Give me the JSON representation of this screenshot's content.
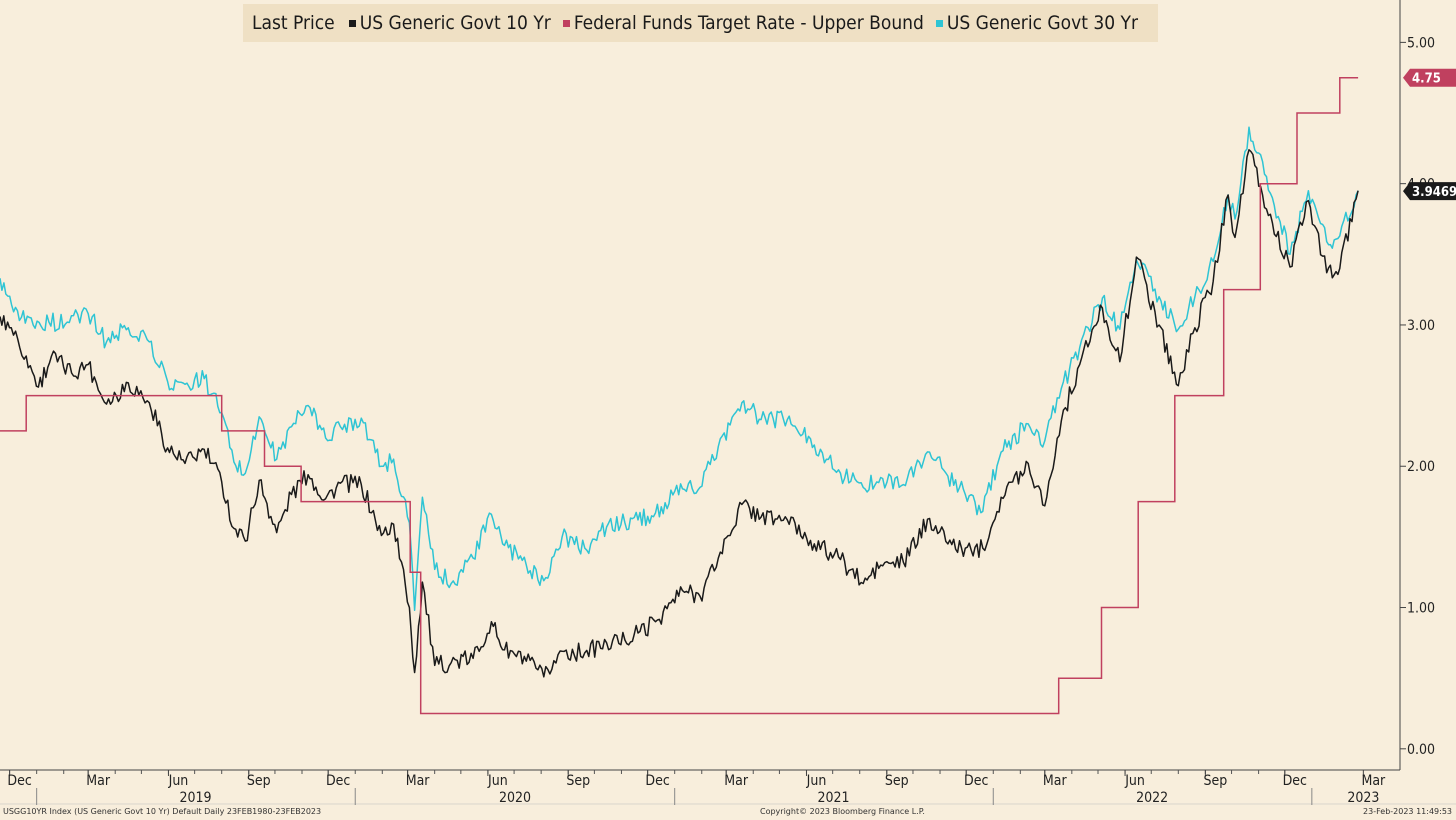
{
  "colors": {
    "background": "#f8eedc",
    "legend_bg": "#efe0c4",
    "ten_year": "#1a1a1a",
    "fed_funds": "#c0405f",
    "thirty_year": "#2ec4d4"
  },
  "legend": {
    "title": "Last Price",
    "items": [
      {
        "label": "US Generic Govt 10 Yr",
        "color": "#1a1a1a"
      },
      {
        "label": "Federal Funds Target Rate - Upper Bound",
        "color": "#c0405f"
      },
      {
        "label": "US Generic Govt 30 Yr",
        "color": "#2ec4d4"
      }
    ]
  },
  "footer": {
    "left": "USGG10YR Index (US Generic Govt 10 Yr) Default  Daily 23FEB1980-23FEB2023",
    "center": "Copyright© 2023 Bloomberg Finance L.P.",
    "right": "23-Feb-2023 11:49:53"
  },
  "chart_data": {
    "type": "line",
    "title": "",
    "xlabel": "",
    "ylabel": "",
    "x_range": [
      "2018-11-20",
      "2023-04-12"
    ],
    "ylim": [
      -0.15,
      5.3
    ],
    "y_ticks": [
      {
        "value": 0,
        "label": "0.00"
      },
      {
        "value": 1,
        "label": "1.00"
      },
      {
        "value": 2,
        "label": "2.00"
      },
      {
        "value": 3,
        "label": "3.00"
      },
      {
        "value": 4,
        "label": "4.00"
      },
      {
        "value": 5,
        "label": "5.00"
      }
    ],
    "x_ticks": [
      {
        "date": "2018-12-01",
        "label": "Dec"
      },
      {
        "date": "2019-03-01",
        "label": "Mar"
      },
      {
        "date": "2019-06-01",
        "label": "Jun"
      },
      {
        "date": "2019-09-01",
        "label": "Sep"
      },
      {
        "date": "2019-12-01",
        "label": "Dec"
      },
      {
        "date": "2020-03-01",
        "label": "Mar"
      },
      {
        "date": "2020-06-01",
        "label": "Jun"
      },
      {
        "date": "2020-09-01",
        "label": "Sep"
      },
      {
        "date": "2020-12-01",
        "label": "Dec"
      },
      {
        "date": "2021-03-01",
        "label": "Mar"
      },
      {
        "date": "2021-06-01",
        "label": "Jun"
      },
      {
        "date": "2021-09-01",
        "label": "Sep"
      },
      {
        "date": "2021-12-01",
        "label": "Dec"
      },
      {
        "date": "2022-03-01",
        "label": "Mar"
      },
      {
        "date": "2022-06-01",
        "label": "Jun"
      },
      {
        "date": "2022-09-01",
        "label": "Sep"
      },
      {
        "date": "2022-12-01",
        "label": "Dec"
      },
      {
        "date": "2023-03-01",
        "label": "Mar"
      }
    ],
    "year_labels": [
      {
        "date": "2019-07-02",
        "label": "2019"
      },
      {
        "date": "2020-07-02",
        "label": "2020"
      },
      {
        "date": "2021-07-02",
        "label": "2021"
      },
      {
        "date": "2022-07-02",
        "label": "2022"
      },
      {
        "date": "2023-03-01",
        "label": "2023"
      }
    ],
    "year_separators": [
      "2019-01-01",
      "2020-01-01",
      "2021-01-01",
      "2022-01-01",
      "2023-01-01"
    ],
    "grid": false,
    "legend_position": "top",
    "series": [
      {
        "name": "US Generic Govt 10 Yr",
        "color": "#1a1a1a",
        "last_value": "3.9469",
        "points": [
          [
            "2018-11-20",
            3.06
          ],
          [
            "2018-12-03",
            2.98
          ],
          [
            "2018-12-20",
            2.78
          ],
          [
            "2019-01-03",
            2.56
          ],
          [
            "2019-01-18",
            2.78
          ],
          [
            "2019-02-10",
            2.66
          ],
          [
            "2019-03-01",
            2.72
          ],
          [
            "2019-03-22",
            2.44
          ],
          [
            "2019-04-16",
            2.59
          ],
          [
            "2019-05-10",
            2.45
          ],
          [
            "2019-05-31",
            2.13
          ],
          [
            "2019-06-20",
            2.02
          ],
          [
            "2019-07-12",
            2.12
          ],
          [
            "2019-08-01",
            1.89
          ],
          [
            "2019-08-15",
            1.56
          ],
          [
            "2019-08-28",
            1.47
          ],
          [
            "2019-09-13",
            1.9
          ],
          [
            "2019-10-03",
            1.53
          ],
          [
            "2019-10-20",
            1.8
          ],
          [
            "2019-11-08",
            1.94
          ],
          [
            "2019-11-28",
            1.77
          ],
          [
            "2019-12-15",
            1.88
          ],
          [
            "2020-01-08",
            1.87
          ],
          [
            "2020-01-31",
            1.51
          ],
          [
            "2020-02-14",
            1.59
          ],
          [
            "2020-03-03",
            1.0
          ],
          [
            "2020-03-09",
            0.54
          ],
          [
            "2020-03-18",
            1.18
          ],
          [
            "2020-04-01",
            0.59
          ],
          [
            "2020-04-20",
            0.61
          ],
          [
            "2020-05-15",
            0.64
          ],
          [
            "2020-06-05",
            0.9
          ],
          [
            "2020-06-20",
            0.7
          ],
          [
            "2020-07-15",
            0.62
          ],
          [
            "2020-08-04",
            0.51
          ],
          [
            "2020-08-25",
            0.69
          ],
          [
            "2020-09-20",
            0.68
          ],
          [
            "2020-10-15",
            0.75
          ],
          [
            "2020-11-05",
            0.77
          ],
          [
            "2020-11-20",
            0.82
          ],
          [
            "2020-12-10",
            0.9
          ],
          [
            "2021-01-10",
            1.12
          ],
          [
            "2021-01-30",
            1.08
          ],
          [
            "2021-02-20",
            1.35
          ],
          [
            "2021-03-19",
            1.73
          ],
          [
            "2021-04-10",
            1.64
          ],
          [
            "2021-05-10",
            1.62
          ],
          [
            "2021-06-10",
            1.45
          ],
          [
            "2021-07-10",
            1.34
          ],
          [
            "2021-08-05",
            1.17
          ],
          [
            "2021-08-25",
            1.3
          ],
          [
            "2021-09-20",
            1.32
          ],
          [
            "2021-10-20",
            1.63
          ],
          [
            "2021-11-10",
            1.45
          ],
          [
            "2021-11-30",
            1.42
          ],
          [
            "2021-12-20",
            1.42
          ],
          [
            "2022-01-10",
            1.78
          ],
          [
            "2022-02-10",
            2.02
          ],
          [
            "2022-03-01",
            1.72
          ],
          [
            "2022-03-20",
            2.32
          ],
          [
            "2022-04-10",
            2.72
          ],
          [
            "2022-05-06",
            3.12
          ],
          [
            "2022-05-26",
            2.74
          ],
          [
            "2022-06-14",
            3.48
          ],
          [
            "2022-07-10",
            3.0
          ],
          [
            "2022-08-01",
            2.57
          ],
          [
            "2022-08-20",
            2.98
          ],
          [
            "2022-09-10",
            3.31
          ],
          [
            "2022-09-27",
            3.92
          ],
          [
            "2022-10-05",
            3.62
          ],
          [
            "2022-10-21",
            4.24
          ],
          [
            "2022-11-10",
            3.82
          ],
          [
            "2022-12-07",
            3.41
          ],
          [
            "2022-12-28",
            3.88
          ],
          [
            "2023-01-18",
            3.37
          ],
          [
            "2023-02-02",
            3.4
          ],
          [
            "2023-02-23",
            3.95
          ]
        ]
      },
      {
        "name": "Federal Funds Target Rate - Upper Bound",
        "color": "#c0405f",
        "last_value": "4.75",
        "steps": [
          [
            "2018-11-20",
            2.25
          ],
          [
            "2018-12-20",
            2.5
          ],
          [
            "2019-08-01",
            2.25
          ],
          [
            "2019-09-19",
            2.0
          ],
          [
            "2019-10-31",
            1.75
          ],
          [
            "2020-03-04",
            1.25
          ],
          [
            "2020-03-16",
            0.25
          ],
          [
            "2022-03-17",
            0.5
          ],
          [
            "2022-05-05",
            1.0
          ],
          [
            "2022-06-16",
            1.75
          ],
          [
            "2022-07-28",
            2.5
          ],
          [
            "2022-09-22",
            3.25
          ],
          [
            "2022-11-03",
            4.0
          ],
          [
            "2022-12-15",
            4.5
          ],
          [
            "2023-02-02",
            4.75
          ],
          [
            "2023-02-23",
            4.75
          ]
        ]
      },
      {
        "name": "US Generic Govt 30 Yr",
        "color": "#2ec4d4",
        "last_value": "3.9469",
        "points": [
          [
            "2018-11-20",
            3.33
          ],
          [
            "2018-12-10",
            3.1
          ],
          [
            "2018-12-28",
            3.0
          ],
          [
            "2019-01-15",
            3.02
          ],
          [
            "2019-02-05",
            3.02
          ],
          [
            "2019-03-01",
            3.08
          ],
          [
            "2019-03-22",
            2.88
          ],
          [
            "2019-04-16",
            2.98
          ],
          [
            "2019-05-10",
            2.88
          ],
          [
            "2019-05-31",
            2.6
          ],
          [
            "2019-06-20",
            2.58
          ],
          [
            "2019-07-12",
            2.62
          ],
          [
            "2019-08-01",
            2.38
          ],
          [
            "2019-08-15",
            2.03
          ],
          [
            "2019-08-28",
            1.95
          ],
          [
            "2019-09-13",
            2.35
          ],
          [
            "2019-10-03",
            2.05
          ],
          [
            "2019-10-20",
            2.28
          ],
          [
            "2019-11-08",
            2.43
          ],
          [
            "2019-11-28",
            2.2
          ],
          [
            "2019-12-15",
            2.28
          ],
          [
            "2020-01-08",
            2.34
          ],
          [
            "2020-01-31",
            2.0
          ],
          [
            "2020-02-14",
            2.05
          ],
          [
            "2020-03-03",
            1.6
          ],
          [
            "2020-03-09",
            0.98
          ],
          [
            "2020-03-18",
            1.78
          ],
          [
            "2020-04-01",
            1.27
          ],
          [
            "2020-04-20",
            1.17
          ],
          [
            "2020-05-15",
            1.35
          ],
          [
            "2020-06-05",
            1.66
          ],
          [
            "2020-06-20",
            1.44
          ],
          [
            "2020-07-15",
            1.3
          ],
          [
            "2020-08-04",
            1.19
          ],
          [
            "2020-08-25",
            1.5
          ],
          [
            "2020-09-20",
            1.42
          ],
          [
            "2020-10-15",
            1.57
          ],
          [
            "2020-11-05",
            1.6
          ],
          [
            "2020-11-20",
            1.62
          ],
          [
            "2020-12-10",
            1.67
          ],
          [
            "2021-01-10",
            1.84
          ],
          [
            "2021-01-30",
            1.85
          ],
          [
            "2021-02-20",
            2.14
          ],
          [
            "2021-03-19",
            2.45
          ],
          [
            "2021-04-10",
            2.33
          ],
          [
            "2021-05-10",
            2.33
          ],
          [
            "2021-06-10",
            2.15
          ],
          [
            "2021-07-10",
            1.95
          ],
          [
            "2021-08-05",
            1.85
          ],
          [
            "2021-08-25",
            1.92
          ],
          [
            "2021-09-20",
            1.87
          ],
          [
            "2021-10-20",
            2.1
          ],
          [
            "2021-11-10",
            1.93
          ],
          [
            "2021-11-30",
            1.8
          ],
          [
            "2021-12-20",
            1.68
          ],
          [
            "2022-01-10",
            2.1
          ],
          [
            "2022-02-10",
            2.3
          ],
          [
            "2022-03-01",
            2.18
          ],
          [
            "2022-03-20",
            2.55
          ],
          [
            "2022-04-10",
            2.84
          ],
          [
            "2022-05-06",
            3.19
          ],
          [
            "2022-05-26",
            2.97
          ],
          [
            "2022-06-14",
            3.46
          ],
          [
            "2022-07-10",
            3.2
          ],
          [
            "2022-08-01",
            2.97
          ],
          [
            "2022-08-20",
            3.2
          ],
          [
            "2022-09-10",
            3.45
          ],
          [
            "2022-09-27",
            3.92
          ],
          [
            "2022-10-05",
            3.75
          ],
          [
            "2022-10-21",
            4.4
          ],
          [
            "2022-11-10",
            4.05
          ],
          [
            "2022-12-07",
            3.5
          ],
          [
            "2022-12-28",
            3.95
          ],
          [
            "2023-01-18",
            3.59
          ],
          [
            "2023-02-02",
            3.63
          ],
          [
            "2023-02-23",
            3.95
          ]
        ]
      }
    ]
  }
}
